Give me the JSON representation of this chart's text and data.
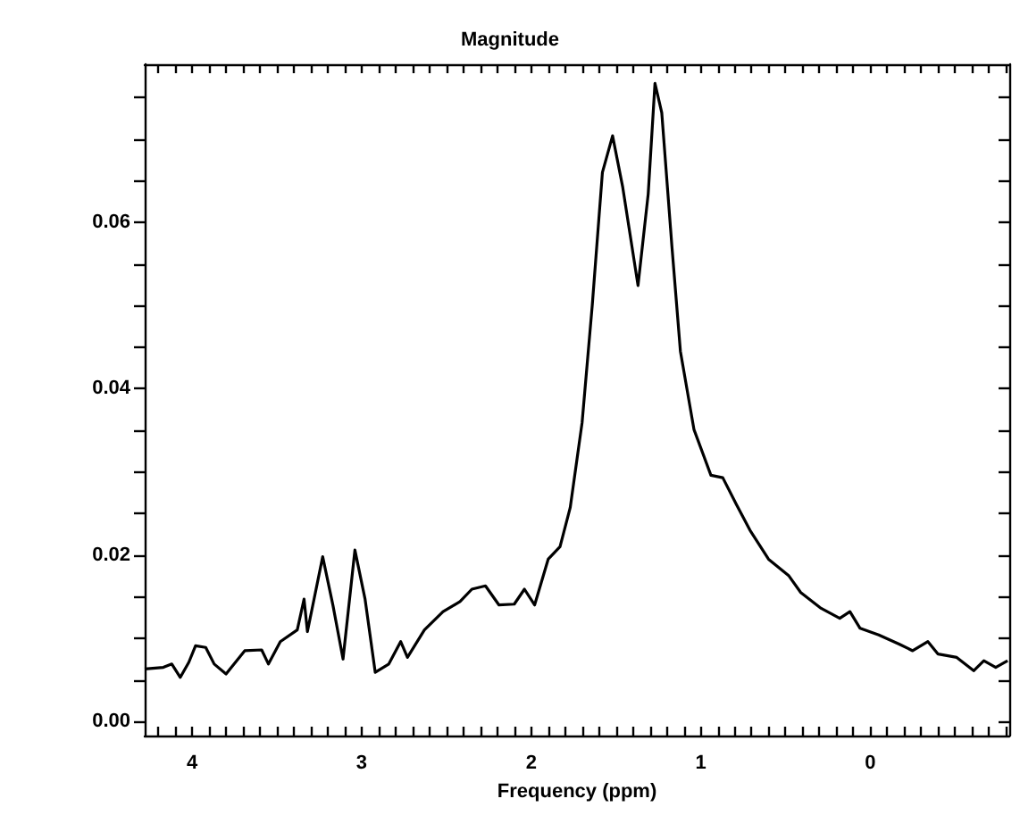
{
  "chart_data": {
    "type": "line",
    "title": "Magnitude",
    "xlabel": "Frequency (ppm)",
    "x": [
      4.28,
      4.17,
      4.12,
      4.07,
      4.02,
      3.98,
      3.92,
      3.87,
      3.8,
      3.69,
      3.59,
      3.55,
      3.48,
      3.38,
      3.34,
      3.32,
      3.23,
      3.17,
      3.11,
      3.04,
      2.98,
      2.92,
      2.84,
      2.77,
      2.73,
      2.63,
      2.52,
      2.42,
      2.35,
      2.27,
      2.19,
      2.1,
      2.04,
      1.98,
      1.9,
      1.83,
      1.77,
      1.7,
      1.64,
      1.58,
      1.52,
      1.46,
      1.37,
      1.31,
      1.27,
      1.23,
      1.17,
      1.12,
      1.04,
      0.94,
      0.87,
      0.79,
      0.71,
      0.6,
      0.48,
      0.41,
      0.29,
      0.18,
      0.12,
      0.06,
      -0.05,
      -0.17,
      -0.25,
      -0.34,
      -0.4,
      -0.51,
      -0.61,
      -0.67,
      -0.74,
      -0.81
    ],
    "series": [
      {
        "color": "#000000",
        "values": [
          0.0063,
          0.0065,
          0.0069,
          0.0053,
          0.0071,
          0.0091,
          0.0089,
          0.0069,
          0.0057,
          0.0085,
          0.0086,
          0.0069,
          0.0096,
          0.011,
          0.0147,
          0.0108,
          0.0198,
          0.014,
          0.0075,
          0.0206,
          0.0147,
          0.0059,
          0.0069,
          0.0096,
          0.0077,
          0.011,
          0.0132,
          0.0144,
          0.0159,
          0.0163,
          0.014,
          0.0141,
          0.0159,
          0.014,
          0.0195,
          0.021,
          0.0257,
          0.0359,
          0.05,
          0.066,
          0.0704,
          0.0642,
          0.0524,
          0.0634,
          0.0767,
          0.0732,
          0.0571,
          0.0445,
          0.0351,
          0.0296,
          0.0293,
          0.0261,
          0.023,
          0.0195,
          0.0175,
          0.0155,
          0.0136,
          0.0124,
          0.0132,
          0.0112,
          0.0104,
          0.0093,
          0.0085,
          0.0096,
          0.0081,
          0.0077,
          0.0061,
          0.0073,
          0.0065,
          0.0073
        ]
      }
    ],
    "xlim": [
      4.28,
      -0.82
    ],
    "xticks": [
      4,
      3,
      2,
      1,
      0,
      {
        "value": 4.2,
        "label": null
      },
      {
        "value": 4.1,
        "label": null
      },
      {
        "value": 3.9,
        "label": null
      },
      {
        "value": 3.8,
        "label": null
      },
      {
        "value": 3.7,
        "label": null
      },
      {
        "value": 3.6,
        "label": null
      },
      {
        "value": 3.5,
        "label": null
      },
      {
        "value": 3.4,
        "label": null
      },
      {
        "value": 3.3,
        "label": null
      },
      {
        "value": 3.2,
        "label": null
      },
      {
        "value": 3.1,
        "label": null
      },
      {
        "value": 2.9,
        "label": null
      },
      {
        "value": 2.8,
        "label": null
      },
      {
        "value": 2.7,
        "label": null
      },
      {
        "value": 2.6,
        "label": null
      },
      {
        "value": 2.5,
        "label": null
      },
      {
        "value": 2.4,
        "label": null
      },
      {
        "value": 2.3,
        "label": null
      },
      {
        "value": 2.2,
        "label": null
      },
      {
        "value": 2.1,
        "label": null
      },
      {
        "value": 1.9,
        "label": null
      },
      {
        "value": 1.8,
        "label": null
      },
      {
        "value": 1.7,
        "label": null
      },
      {
        "value": 1.6,
        "label": null
      },
      {
        "value": 1.5,
        "label": null
      },
      {
        "value": 1.4,
        "label": null
      },
      {
        "value": 1.3,
        "label": null
      },
      {
        "value": 1.2,
        "label": null
      },
      {
        "value": 1.1,
        "label": null
      },
      {
        "value": 0.9,
        "label": null
      },
      {
        "value": 0.8,
        "label": null
      },
      {
        "value": 0.7,
        "label": null
      },
      {
        "value": 0.6,
        "label": null
      },
      {
        "value": 0.5,
        "label": null
      },
      {
        "value": 0.4,
        "label": null
      },
      {
        "value": 0.3,
        "label": null
      },
      {
        "value": 0.2,
        "label": null
      },
      {
        "value": 0.1,
        "label": null
      },
      {
        "value": -0.1,
        "label": null
      },
      {
        "value": -0.2,
        "label": null
      },
      {
        "value": -0.3,
        "label": null
      },
      {
        "value": -0.4,
        "label": null
      },
      {
        "value": -0.5,
        "label": null
      },
      {
        "value": -0.6,
        "label": null
      },
      {
        "value": -0.7,
        "label": null
      },
      {
        "value": -0.8,
        "label": null
      }
    ],
    "ylim": [
      -0.0017,
      0.079
    ],
    "yticks": [
      {
        "value": 0,
        "label": "0.00"
      },
      {
        "value": 0.02,
        "label": "0.02"
      },
      {
        "value": 0.04,
        "label": "0.04"
      },
      {
        "value": 0.06,
        "label": "0.06"
      },
      {
        "value": 0.005,
        "label": null
      },
      {
        "value": 0.01,
        "label": null
      },
      {
        "value": 0.015,
        "label": null
      },
      {
        "value": 0.025,
        "label": null
      },
      {
        "value": 0.03,
        "label": null
      },
      {
        "value": 0.035,
        "label": null
      },
      {
        "value": 0.045,
        "label": null
      },
      {
        "value": 0.05,
        "label": null
      },
      {
        "value": 0.055,
        "label": null
      },
      {
        "value": 0.065,
        "label": null
      },
      {
        "value": 0.07,
        "label": null
      },
      {
        "value": 0.075,
        "label": null
      }
    ],
    "marker": "none",
    "line_style": "solid",
    "grid": false
  }
}
